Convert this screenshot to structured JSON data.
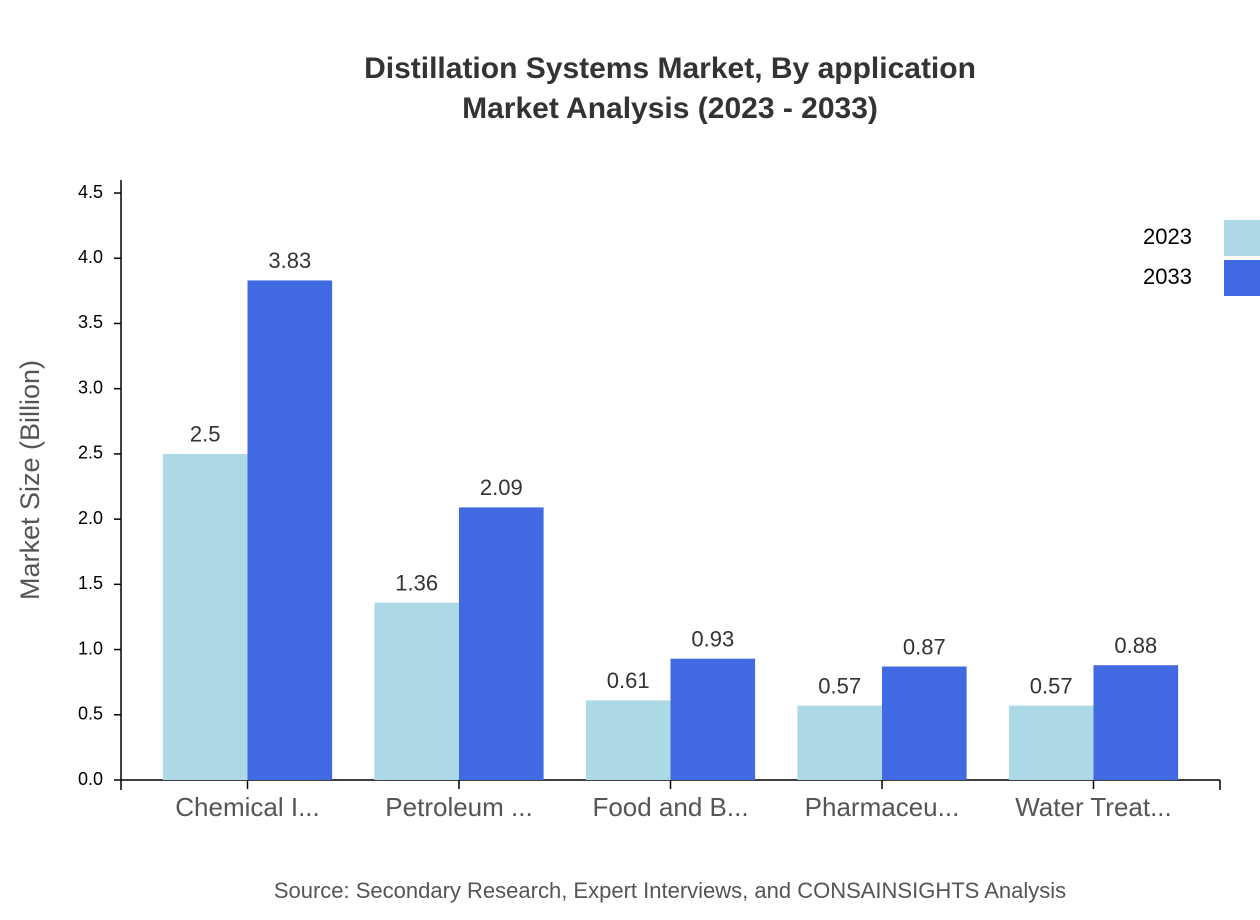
{
  "chart_data": {
    "type": "bar",
    "title": "Distillation Systems Market, By application",
    "subtitle": "Market Analysis (2023 - 2033)",
    "y_label": "Market Size (Billion)",
    "source": "Source: Secondary Research, Expert Interviews, and CONSAINSIGHTS Analysis",
    "categories": [
      "Chemical I...",
      "Petroleum ...",
      "Food and B...",
      "Pharmaceu...",
      "Water Treat..."
    ],
    "series": [
      {
        "name": "2023",
        "color": "#add8e6",
        "values": [
          2.5,
          1.36,
          0.61,
          0.57,
          0.57
        ]
      },
      {
        "name": "2033",
        "color": "#4169e1",
        "values": [
          3.83,
          2.09,
          0.93,
          0.87,
          0.88
        ]
      }
    ],
    "ylim": [
      0,
      4.6
    ],
    "yticks": [
      {
        "value": 0,
        "label": "0.0"
      },
      0.5,
      {
        "value": 1,
        "label": "1.0"
      },
      1.5,
      {
        "value": 2,
        "label": "2.0"
      },
      2.5,
      {
        "value": 3,
        "label": "3.0"
      },
      3.5,
      {
        "value": 4,
        "label": "4.0"
      },
      4.5
    ],
    "grid": false,
    "legend": "top-right"
  }
}
